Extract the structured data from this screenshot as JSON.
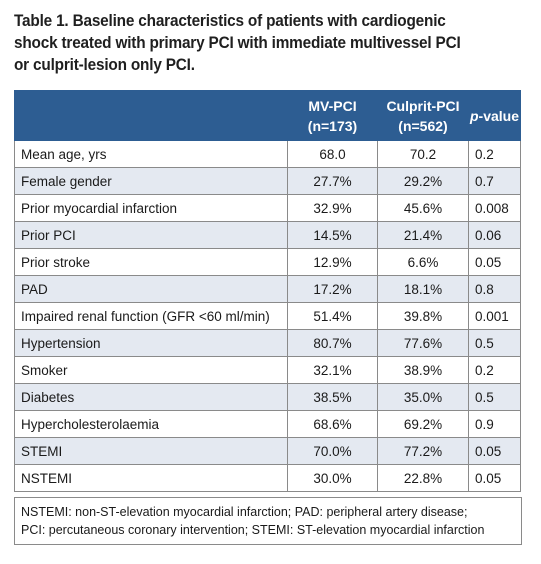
{
  "caption": "Table 1. Baseline characteristics of patients with cardiogenic shock treated with primary PCI with immediate multivessel PCI or culprit-lesion only PCI.",
  "headers": {
    "col1": "",
    "col2_line1": "MV-PCI",
    "col2_line2": "(n=173)",
    "col3_line1": "Culprit-PCI",
    "col3_line2": "(n=562)",
    "col4_italic": "p",
    "col4_rest": "-value"
  },
  "rows": [
    {
      "label": "Mean age, yrs",
      "mv": "68.0",
      "culprit": "70.2",
      "p": "0.2"
    },
    {
      "label": "Female gender",
      "mv": "27.7%",
      "culprit": "29.2%",
      "p": "0.7"
    },
    {
      "label": "Prior myocardial infarction",
      "mv": "32.9%",
      "culprit": "45.6%",
      "p": "0.008"
    },
    {
      "label": "Prior PCI",
      "mv": "14.5%",
      "culprit": "21.4%",
      "p": "0.06"
    },
    {
      "label": "Prior stroke",
      "mv": "12.9%",
      "culprit": "6.6%",
      "p": "0.05"
    },
    {
      "label": "PAD",
      "mv": "17.2%",
      "culprit": "18.1%",
      "p": "0.8"
    },
    {
      "label": "Impaired renal function (GFR <60 ml/min)",
      "mv": "51.4%",
      "culprit": "39.8%",
      "p": "0.001"
    },
    {
      "label": "Hypertension",
      "mv": "80.7%",
      "culprit": "77.6%",
      "p": "0.5"
    },
    {
      "label": "Smoker",
      "mv": "32.1%",
      "culprit": "38.9%",
      "p": "0.2"
    },
    {
      "label": "Diabetes",
      "mv": "38.5%",
      "culprit": "35.0%",
      "p": "0.5"
    },
    {
      "label": "Hypercholesterolaemia",
      "mv": "68.6%",
      "culprit": "69.2%",
      "p": "0.9"
    },
    {
      "label": "STEMI",
      "mv": "70.0%",
      "culprit": "77.2%",
      "p": "0.05"
    },
    {
      "label": "NSTEMI",
      "mv": "30.0%",
      "culprit": "22.8%",
      "p": "0.05"
    }
  ],
  "footnote": {
    "line1": "NSTEMI: non-ST-elevation myocardial infarction; PAD: peripheral artery disease;",
    "line2": "PCI: percutaneous coronary intervention; STEMI: ST-elevation myocardial infarction"
  },
  "colors": {
    "header_bg": "#2d5d92",
    "shaded_row": "#e4e9f1",
    "border": "#8a8a8a"
  }
}
